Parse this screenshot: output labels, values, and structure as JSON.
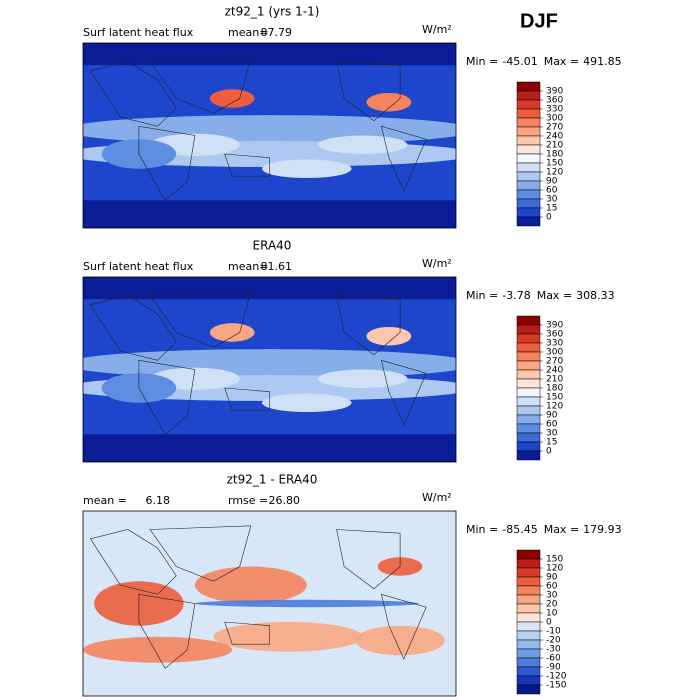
{
  "season": "DJF",
  "panels": [
    {
      "title": "zt92_1 (yrs 1-1)",
      "label": "Surf latent heat flux",
      "mean_label": "mean=",
      "mean": 87.79,
      "units": "W/m²",
      "min_label": "Min =",
      "min": -45.01,
      "max_label": "Max =",
      "max": 491.85,
      "colorbar": {
        "levels": [
          390,
          360,
          330,
          300,
          270,
          240,
          210,
          180,
          150,
          120,
          90,
          60,
          30,
          15,
          0
        ],
        "colors": [
          "#8c0000",
          "#bb1d18",
          "#d93a26",
          "#ec5e3c",
          "#f5845d",
          "#f9a783",
          "#fcc7ac",
          "#fee5d8",
          "#f4f7fd",
          "#cfe0f7",
          "#adc9f1",
          "#87aeea",
          "#5e8ee2",
          "#3a6bd8",
          "#1d46cc",
          "#0a1d96"
        ]
      }
    },
    {
      "title": "ERA40",
      "label": "Surf latent heat flux",
      "mean_label": "mean=",
      "mean": 81.61,
      "units": "W/m²",
      "min_label": "Min =",
      "min": -3.78,
      "max_label": "Max =",
      "max": 308.33,
      "colorbar": {
        "levels": [
          390,
          360,
          330,
          300,
          270,
          240,
          210,
          180,
          150,
          120,
          90,
          60,
          30,
          15,
          0
        ],
        "colors": [
          "#8c0000",
          "#bb1d18",
          "#d93a26",
          "#ec5e3c",
          "#f5845d",
          "#f9a783",
          "#fcc7ac",
          "#fee5d8",
          "#f4f7fd",
          "#cfe0f7",
          "#adc9f1",
          "#87aeea",
          "#5e8ee2",
          "#3a6bd8",
          "#1d46cc",
          "#0a1d96"
        ]
      }
    },
    {
      "title": "zt92_1 - ERA40",
      "mean_label": "mean =",
      "mean": 6.18,
      "rmse_label": "rmse =",
      "rmse": 26.8,
      "rmse_text": "26.80",
      "units": "W/m²",
      "min_label": "Min =",
      "min": -85.45,
      "max_label": "Max =",
      "max": 179.93,
      "colorbar": {
        "levels": [
          150,
          120,
          90,
          60,
          30,
          20,
          10,
          0,
          -10,
          -20,
          -30,
          -60,
          -90,
          -120,
          -150
        ],
        "colors": [
          "#8c0000",
          "#bb1d18",
          "#d93a26",
          "#ec5e3c",
          "#f5845d",
          "#f9a783",
          "#fcc7ac",
          "#fee5d8",
          "#d8e7f8",
          "#b8d2f3",
          "#96baed",
          "#6f9ce6",
          "#4b7bdd",
          "#2c58d3",
          "#1535b8",
          "#081888"
        ]
      }
    }
  ]
}
